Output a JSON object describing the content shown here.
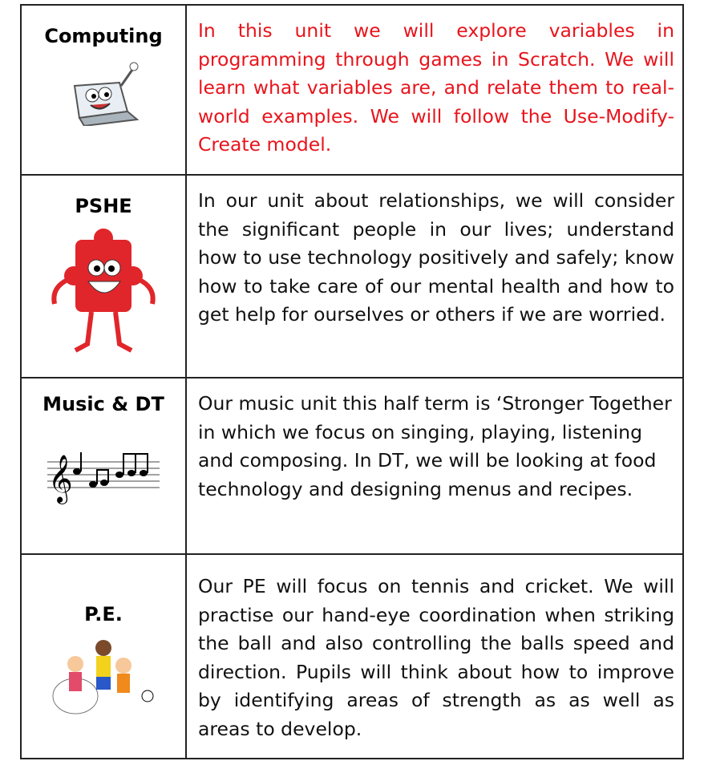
{
  "table": {
    "rows": [
      {
        "subject": "Computing",
        "text": "In this unit we will explore variables in programming through games in Scratch. We will learn what variables are, and relate them to real-world examples. We will  follow the Use-Modify-Create model."
      },
      {
        "subject": "PSHE",
        "text": "In our unit about relationships, we will consider the significant people in our lives; understand how to use technology positively and safely; know how to take care of our mental health and how to get help for ourselves or others if we are worried."
      },
      {
        "subject": "Music & DT",
        "text": "Our music unit this half term is ‘Stronger Together in which we focus on singing, playing, listening and composing. In DT, we will be looking at food technology and designing menus and recipes."
      },
      {
        "subject": "P.E.",
        "text": "Our PE will focus on tennis and cricket. We will practise our hand-eye coordination when striking the ball and also controlling the balls speed and direction. Pupils will think about how to improve by  identifying areas of strength as as well as areas to develop."
      }
    ]
  }
}
